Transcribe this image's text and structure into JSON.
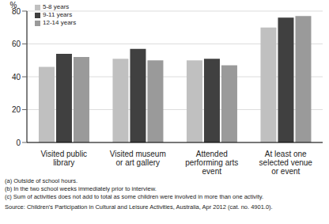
{
  "chart_data": {
    "type": "bar",
    "y_label": "%",
    "categories": [
      "Visited public library",
      "Visited museum or art gallery",
      "Attended performing arts event",
      "At least one selected venue or event"
    ],
    "series": [
      {
        "name": "5-8 years",
        "color": "#c0c0c0",
        "values": [
          46,
          51,
          50,
          70
        ]
      },
      {
        "name": "9-11 years",
        "color": "#404040",
        "values": [
          54,
          57,
          51,
          76
        ]
      },
      {
        "name": "12-14 years",
        "color": "#9a9a9a",
        "values": [
          52,
          50,
          47,
          77
        ]
      }
    ],
    "ylim": [
      0,
      80
    ],
    "yticks": [
      0,
      20,
      40,
      60,
      80
    ],
    "grid": true,
    "legend": "upper left",
    "footnotes": [
      "(a) Outside of school hours.",
      "(b) In the two school weeks immediately prior to interview.",
      "(c) Sum of activities does not add to total as some children were involved in more than one activity."
    ],
    "source": "Source: Children's Participation in Cultural and Leisure Activities, Australia, Apr 2012 (cat. no. 4901.0)."
  }
}
